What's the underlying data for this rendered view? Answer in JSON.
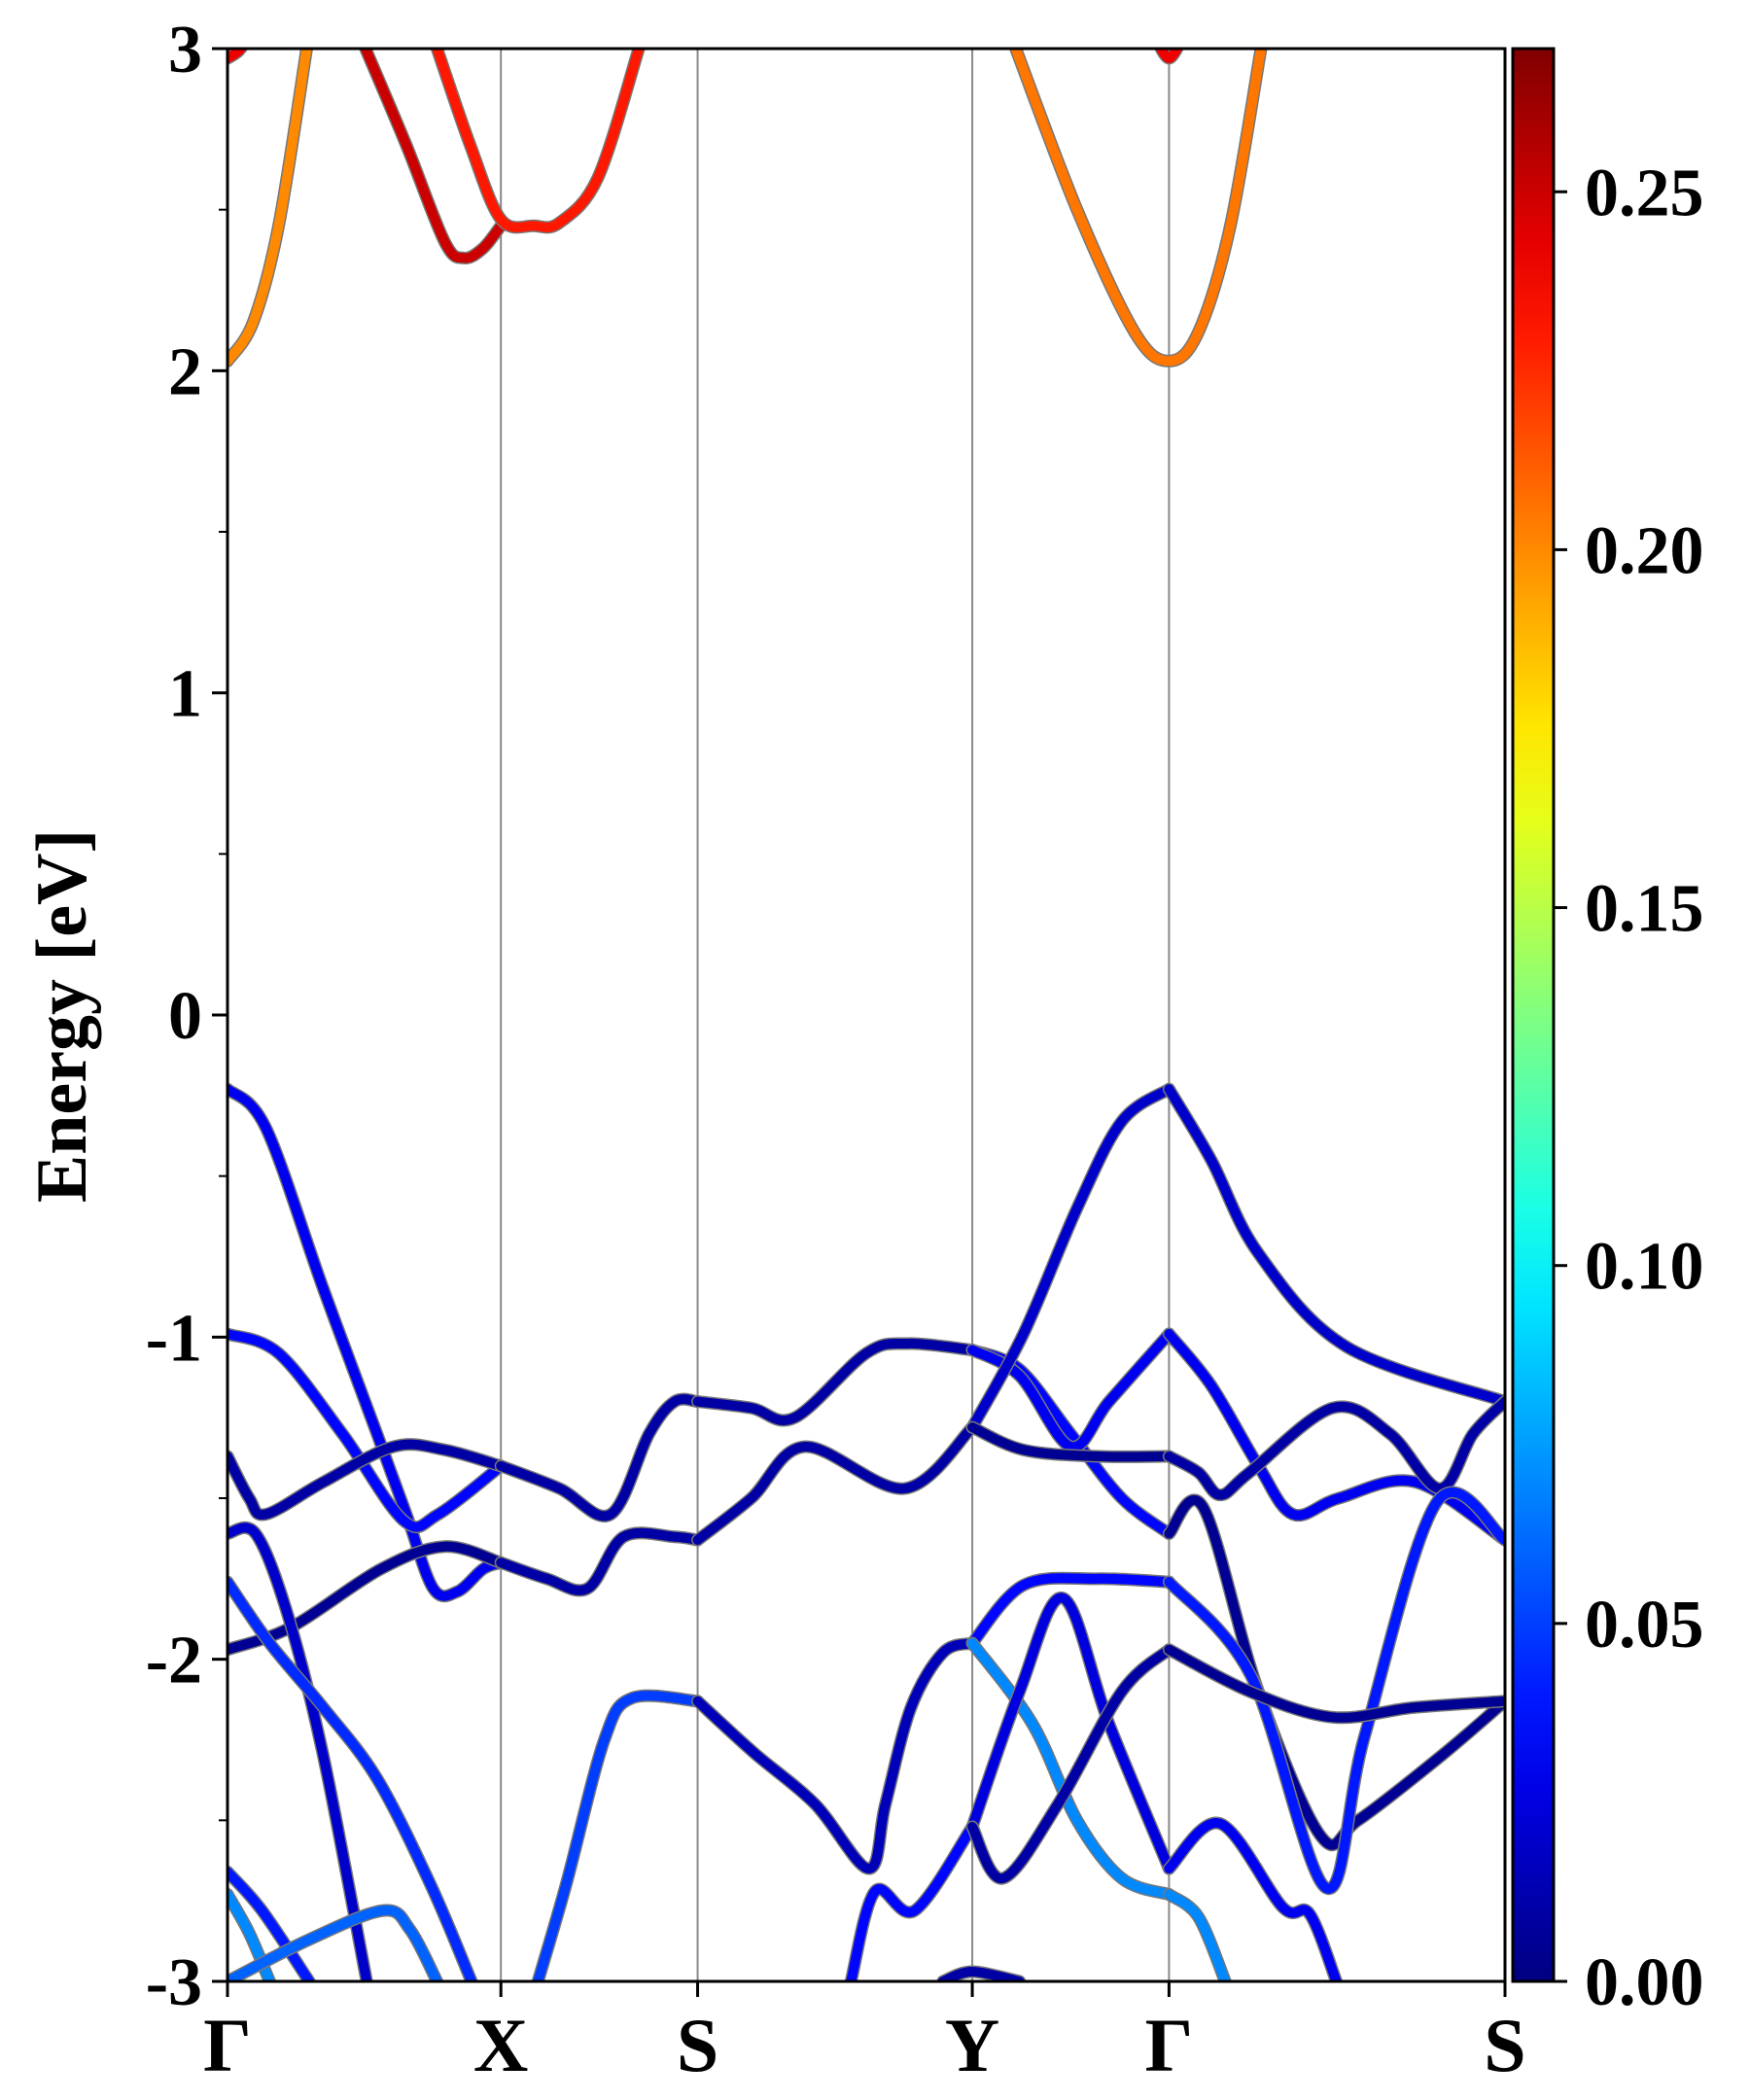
{
  "chart_data": {
    "type": "line",
    "title": "",
    "ylabel": "Energy [eV]",
    "xlabel": "",
    "ylim": [
      -3,
      3
    ],
    "xlim": [
      0,
      1
    ],
    "yticks": [
      -3,
      -2,
      -1,
      0,
      1,
      2,
      3
    ],
    "ytick_labels": [
      "-3",
      "-2",
      "-1",
      "0",
      "1",
      "2",
      "3"
    ],
    "kpoints": [
      {
        "label": "Γ",
        "k": 0
      },
      {
        "label": "X",
        "k": 0.214
      },
      {
        "label": "S",
        "k": 0.368
      },
      {
        "label": "Y",
        "k": 0.583
      },
      {
        "label": "Γ",
        "k": 0.737
      },
      {
        "label": "S",
        "k": 1.0
      }
    ],
    "colorbar": {
      "colormap": "jet",
      "range": [
        0,
        0.27
      ],
      "ticks": [
        0,
        0.05,
        0.1,
        0.15,
        0.2,
        0.25
      ],
      "tick_labels": [
        "0.00",
        "0.05",
        "0.10",
        "0.15",
        "0.20",
        "0.25"
      ]
    },
    "bands": [
      {
        "w": 0.2,
        "pts": [
          [
            0,
            2.03
          ],
          [
            0.02,
            2.15
          ],
          [
            0.04,
            2.45
          ],
          [
            0.062,
            3.0
          ]
        ]
      },
      {
        "w": 0.205,
        "pts": [
          [
            0.617,
            3.0
          ],
          [
            0.665,
            2.5
          ],
          [
            0.71,
            2.12
          ],
          [
            0.737,
            2.03
          ],
          [
            0.76,
            2.12
          ],
          [
            0.785,
            2.45
          ],
          [
            0.809,
            3.0
          ]
        ]
      },
      {
        "w": 0.25,
        "pts": [
          [
            0.108,
            3.0
          ],
          [
            0.14,
            2.7
          ],
          [
            0.17,
            2.4
          ],
          [
            0.185,
            2.35
          ],
          [
            0.2,
            2.38
          ],
          [
            0.214,
            2.45
          ]
        ]
      },
      {
        "w": 0.23,
        "pts": [
          [
            0.164,
            3.0
          ],
          [
            0.19,
            2.7
          ],
          [
            0.214,
            2.47
          ],
          [
            0.24,
            2.45
          ],
          [
            0.26,
            2.46
          ],
          [
            0.29,
            2.6
          ],
          [
            0.322,
            3.0
          ]
        ]
      },
      {
        "w": 0.24,
        "pts": [
          [
            0,
            2.97
          ],
          [
            0.008,
            2.99
          ],
          [
            0.014,
            3.02
          ]
        ]
      },
      {
        "w": 0.24,
        "pts": [
          [
            0.728,
            3.02
          ],
          [
            0.737,
            2.97
          ],
          [
            0.746,
            3.02
          ]
        ]
      },
      {
        "w": 0.03,
        "pts": [
          [
            0,
            -0.23
          ],
          [
            0.03,
            -0.35
          ],
          [
            0.075,
            -0.85
          ],
          [
            0.117,
            -1.3
          ],
          [
            0.14,
            -1.55
          ],
          [
            0.161,
            -1.78
          ],
          [
            0.18,
            -1.79
          ],
          [
            0.2,
            -1.72
          ],
          [
            0.214,
            -1.7
          ]
        ]
      },
      {
        "w": 0.035,
        "pts": [
          [
            0,
            -0.99
          ],
          [
            0.04,
            -1.05
          ],
          [
            0.09,
            -1.3
          ],
          [
            0.138,
            -1.57
          ],
          [
            0.165,
            -1.55
          ],
          [
            0.214,
            -1.4
          ]
        ]
      },
      {
        "w": 0.01,
        "pts": [
          [
            0,
            -1.37
          ],
          [
            0.017,
            -1.5
          ],
          [
            0.03,
            -1.55
          ],
          [
            0.075,
            -1.45
          ],
          [
            0.13,
            -1.34
          ],
          [
            0.17,
            -1.35
          ],
          [
            0.214,
            -1.4
          ]
        ]
      },
      {
        "w": 0.005,
        "pts": [
          [
            0,
            -1.97
          ],
          [
            0.05,
            -1.9
          ],
          [
            0.12,
            -1.72
          ],
          [
            0.17,
            -1.65
          ],
          [
            0.214,
            -1.7
          ]
        ]
      },
      {
        "w": 0.01,
        "pts": [
          [
            0.214,
            -1.4
          ],
          [
            0.26,
            -1.47
          ],
          [
            0.3,
            -1.55
          ],
          [
            0.33,
            -1.3
          ],
          [
            0.35,
            -1.2
          ],
          [
            0.368,
            -1.2
          ]
        ]
      },
      {
        "w": 0.01,
        "pts": [
          [
            0.214,
            -1.7
          ],
          [
            0.25,
            -1.75
          ],
          [
            0.282,
            -1.78
          ],
          [
            0.31,
            -1.62
          ],
          [
            0.35,
            -1.62
          ],
          [
            0.368,
            -1.63
          ]
        ]
      },
      {
        "w": 0.05,
        "pts": [
          [
            0.243,
            -3.0
          ],
          [
            0.265,
            -2.7
          ],
          [
            0.295,
            -2.25
          ],
          [
            0.317,
            -2.12
          ],
          [
            0.368,
            -2.13
          ]
        ]
      },
      {
        "w": 0.01,
        "pts": [
          [
            0.368,
            -1.2
          ],
          [
            0.41,
            -1.22
          ],
          [
            0.444,
            -1.25
          ],
          [
            0.5,
            -1.05
          ],
          [
            0.533,
            -1.02
          ],
          [
            0.583,
            -1.04
          ]
        ]
      },
      {
        "w": 0.01,
        "pts": [
          [
            0.368,
            -1.63
          ],
          [
            0.41,
            -1.5
          ],
          [
            0.452,
            -1.34
          ],
          [
            0.53,
            -1.47
          ],
          [
            0.583,
            -1.28
          ]
        ]
      },
      {
        "w": 0.015,
        "pts": [
          [
            0.368,
            -2.13
          ],
          [
            0.412,
            -2.29
          ],
          [
            0.46,
            -2.45
          ],
          [
            0.502,
            -2.65
          ],
          [
            0.515,
            -2.45
          ],
          [
            0.535,
            -2.15
          ],
          [
            0.56,
            -1.98
          ],
          [
            0.583,
            -1.95
          ]
        ]
      },
      {
        "w": 0.035,
        "pts": [
          [
            0.488,
            -3.0
          ],
          [
            0.507,
            -2.72
          ],
          [
            0.538,
            -2.78
          ],
          [
            0.583,
            -2.52
          ]
        ]
      },
      {
        "w": 0.035,
        "pts": [
          [
            0.583,
            -1.04
          ],
          [
            0.62,
            -1.1
          ],
          [
            0.66,
            -1.3
          ],
          [
            0.7,
            -1.5
          ],
          [
            0.737,
            -1.61
          ]
        ]
      },
      {
        "w": 0.03,
        "pts": [
          [
            0.583,
            -1.04
          ],
          [
            0.62,
            -1.12
          ],
          [
            0.66,
            -1.34
          ],
          [
            0.69,
            -1.2
          ],
          [
            0.737,
            -0.99
          ]
        ]
      },
      {
        "w": 0.02,
        "pts": [
          [
            0.583,
            -1.28
          ],
          [
            0.623,
            -0.99
          ],
          [
            0.665,
            -0.6
          ],
          [
            0.7,
            -0.33
          ],
          [
            0.737,
            -0.23
          ]
        ]
      },
      {
        "w": 0.005,
        "pts": [
          [
            0.583,
            -1.28
          ],
          [
            0.623,
            -1.35
          ],
          [
            0.68,
            -1.37
          ],
          [
            0.737,
            -1.37
          ]
        ]
      },
      {
        "w": 0.035,
        "pts": [
          [
            0.583,
            -1.95
          ],
          [
            0.623,
            -1.77
          ],
          [
            0.68,
            -1.75
          ],
          [
            0.737,
            -1.76
          ]
        ]
      },
      {
        "w": 0.07,
        "pts": [
          [
            0.583,
            -1.95
          ],
          [
            0.63,
            -2.2
          ],
          [
            0.665,
            -2.5
          ],
          [
            0.7,
            -2.68
          ],
          [
            0.737,
            -2.73
          ]
        ]
      },
      {
        "w": 0.025,
        "pts": [
          [
            0.583,
            -2.52
          ],
          [
            0.62,
            -2.1
          ],
          [
            0.654,
            -1.81
          ],
          [
            0.69,
            -2.2
          ],
          [
            0.737,
            -2.65
          ]
        ]
      },
      {
        "w": 0.01,
        "pts": [
          [
            0.583,
            -2.52
          ],
          [
            0.607,
            -2.68
          ],
          [
            0.65,
            -2.45
          ],
          [
            0.7,
            -2.1
          ],
          [
            0.737,
            -1.97
          ]
        ]
      },
      {
        "w": 0.02,
        "pts": [
          [
            0.737,
            -0.23
          ],
          [
            0.77,
            -0.45
          ],
          [
            0.807,
            -0.74
          ],
          [
            0.876,
            -1.03
          ],
          [
            1,
            -1.2
          ]
        ]
      },
      {
        "w": 0.03,
        "pts": [
          [
            0.737,
            -0.99
          ],
          [
            0.77,
            -1.15
          ],
          [
            0.807,
            -1.4
          ],
          [
            0.834,
            -1.55
          ],
          [
            0.87,
            -1.5
          ],
          [
            0.93,
            -1.45
          ],
          [
            1,
            -1.63
          ]
        ]
      },
      {
        "w": 0.01,
        "pts": [
          [
            0.737,
            -1.37
          ],
          [
            0.76,
            -1.42
          ],
          [
            0.777,
            -1.49
          ],
          [
            0.8,
            -1.42
          ],
          [
            0.865,
            -1.22
          ],
          [
            0.91,
            -1.3
          ],
          [
            0.949,
            -1.47
          ],
          [
            0.975,
            -1.3
          ],
          [
            1,
            -1.2
          ]
        ]
      },
      {
        "w": 0.005,
        "pts": [
          [
            0.737,
            -1.61
          ],
          [
            0.764,
            -1.53
          ],
          [
            0.807,
            -2.1
          ],
          [
            0.856,
            -2.55
          ],
          [
            0.885,
            -2.5
          ],
          [
            0.95,
            -2.3
          ],
          [
            1,
            -2.13
          ]
        ]
      },
      {
        "w": 0.04,
        "pts": [
          [
            0.737,
            -1.76
          ],
          [
            0.801,
            -2.05
          ],
          [
            0.86,
            -2.71
          ],
          [
            0.89,
            -2.24
          ],
          [
            0.947,
            -1.51
          ],
          [
            1,
            -1.63
          ]
        ]
      },
      {
        "w": 0.005,
        "pts": [
          [
            0.737,
            -1.97
          ],
          [
            0.8,
            -2.1
          ],
          [
            0.865,
            -2.18
          ],
          [
            0.928,
            -2.15
          ],
          [
            1,
            -2.13
          ]
        ]
      },
      {
        "w": 0.03,
        "pts": [
          [
            0.737,
            -2.65
          ],
          [
            0.777,
            -2.51
          ],
          [
            0.826,
            -2.77
          ],
          [
            0.847,
            -2.79
          ],
          [
            0.868,
            -3.0
          ]
        ]
      },
      {
        "w": 0.07,
        "pts": [
          [
            0.737,
            -2.73
          ],
          [
            0.76,
            -2.8
          ],
          [
            0.781,
            -3.0
          ]
        ]
      },
      {
        "w": 0.01,
        "pts": [
          [
            0.56,
            -3.0
          ],
          [
            0.583,
            -2.97
          ],
          [
            0.62,
            -3.0
          ]
        ]
      },
      {
        "w": 0.02,
        "pts": [
          [
            0,
            -1.61
          ],
          [
            0.022,
            -1.61
          ],
          [
            0.047,
            -1.86
          ],
          [
            0.075,
            -2.3
          ],
          [
            0.109,
            -3.0
          ]
        ]
      },
      {
        "w": 0.045,
        "pts": [
          [
            0,
            -1.76
          ],
          [
            0.033,
            -1.95
          ],
          [
            0.075,
            -2.15
          ],
          [
            0.117,
            -2.37
          ],
          [
            0.159,
            -2.7
          ],
          [
            0.191,
            -3.0
          ]
        ]
      },
      {
        "w": 0.04,
        "pts": [
          [
            0,
            -2.66
          ],
          [
            0.027,
            -2.78
          ],
          [
            0.064,
            -3.0
          ]
        ]
      },
      {
        "w": 0.07,
        "pts": [
          [
            0,
            -2.73
          ],
          [
            0.017,
            -2.85
          ],
          [
            0.033,
            -3.0
          ]
        ]
      },
      {
        "w": 0.06,
        "pts": [
          [
            0,
            -3.0
          ],
          [
            0.064,
            -2.87
          ],
          [
            0.122,
            -2.78
          ],
          [
            0.143,
            -2.84
          ],
          [
            0.164,
            -3.0
          ]
        ]
      }
    ]
  }
}
